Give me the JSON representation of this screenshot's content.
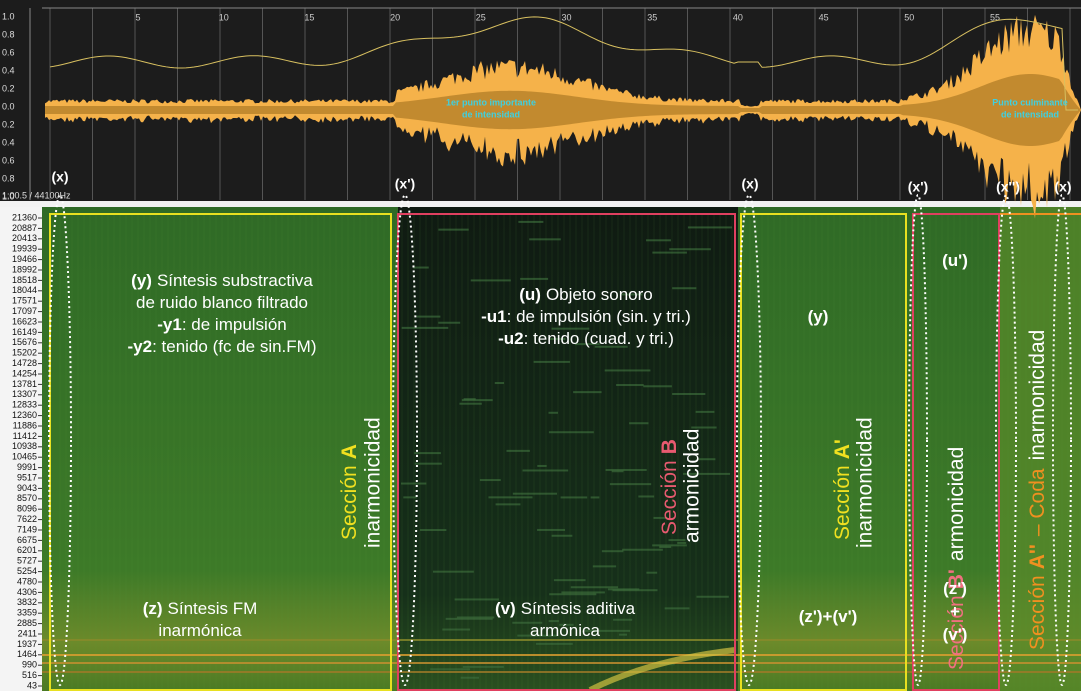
{
  "waveform": {
    "amplitude_labels": [
      "1.0",
      "0.8",
      "0.6",
      "0.4",
      "0.2",
      "0.0",
      "0.2",
      "0.4",
      "0.6",
      "0.8",
      "1.0"
    ],
    "time_labels": [
      "5",
      "10",
      "15",
      "20",
      "25",
      "30",
      "35",
      "40",
      "45",
      "50",
      "55"
    ],
    "position": "1:00.5 / 44100Hz",
    "notes": [
      [
        "1er punto importante",
        "de intensidad"
      ],
      [
        "Punto culminante",
        "de intensidad"
      ]
    ]
  },
  "markers": [
    "(x)",
    "(x')",
    "(x)",
    "(x')",
    "(x'')",
    "(x)"
  ],
  "spectrogram": {
    "frequency_labels": [
      "21360",
      "20887",
      "20413",
      "19939",
      "19466",
      "18992",
      "18518",
      "18044",
      "17571",
      "17097",
      "16623",
      "16149",
      "15676",
      "15202",
      "14728",
      "14254",
      "13781",
      "13307",
      "12833",
      "12360",
      "11886",
      "11412",
      "10938",
      "10465",
      "9991",
      "9517",
      "9043",
      "8570",
      "8096",
      "7622",
      "7149",
      "6675",
      "6201",
      "5727",
      "5254",
      "4780",
      "4306",
      "3832",
      "3359",
      "2885",
      "2411",
      "1937",
      "1464",
      "990",
      "516",
      "43"
    ]
  },
  "sections": [
    {
      "name": "Sección",
      "letter": "A",
      "quality": "inarmonicidad"
    },
    {
      "name": "Sección",
      "letter": "B",
      "quality": "armonicidad"
    },
    {
      "name": "Sección",
      "letter": "A'",
      "quality": "inarmonicidad"
    },
    {
      "name": "Sección",
      "letter": "B'",
      "quality": "armonicidad"
    },
    {
      "name": "Sección",
      "letter": "A''",
      "suffix": "– Coda",
      "quality": "inarmonicidad"
    }
  ],
  "annotations": [
    {
      "lines": [
        [
          {
            "b": "(y)"
          },
          {
            "t": "Síntesis substractiva"
          }
        ],
        [
          {
            "t": "de ruido blanco filtrado"
          }
        ],
        [
          {
            "b": "-y1"
          },
          {
            "t": ": de impulsión"
          }
        ],
        [
          {
            "b": "-y2"
          },
          {
            "t": ": tenido (fc de sin.FM)"
          }
        ]
      ]
    },
    {
      "lines": [
        [
          {
            "b": "(u)"
          },
          {
            "t": "Objeto sonoro"
          }
        ],
        [
          {
            "b": "-u1"
          },
          {
            "t": ": de impulsión (sin. y tri.)"
          }
        ],
        [
          {
            "b": "-u2"
          },
          {
            "t": ": tenido (cuad. y tri.)"
          }
        ]
      ]
    },
    {
      "lines": [
        [
          {
            "b": "(y)"
          }
        ]
      ]
    },
    {
      "lines": [
        [
          {
            "b": "(u')"
          }
        ]
      ]
    },
    {
      "lines": [
        [
          {
            "b": "(z)"
          },
          {
            "t": "Síntesis FM"
          }
        ],
        [
          {
            "t": "inarmónica"
          }
        ]
      ]
    },
    {
      "lines": [
        [
          {
            "b": "(v)"
          },
          {
            "t": "Síntesis aditiva"
          }
        ],
        [
          {
            "t": "armónica"
          }
        ]
      ]
    },
    {
      "lines": [
        [
          {
            "b": "(z')+(v')"
          }
        ]
      ]
    },
    {
      "lines": [
        [
          {
            "b": "(z')"
          }
        ],
        [
          {
            "b": "+"
          }
        ],
        [
          {
            "b": "(v')"
          }
        ]
      ]
    }
  ]
}
